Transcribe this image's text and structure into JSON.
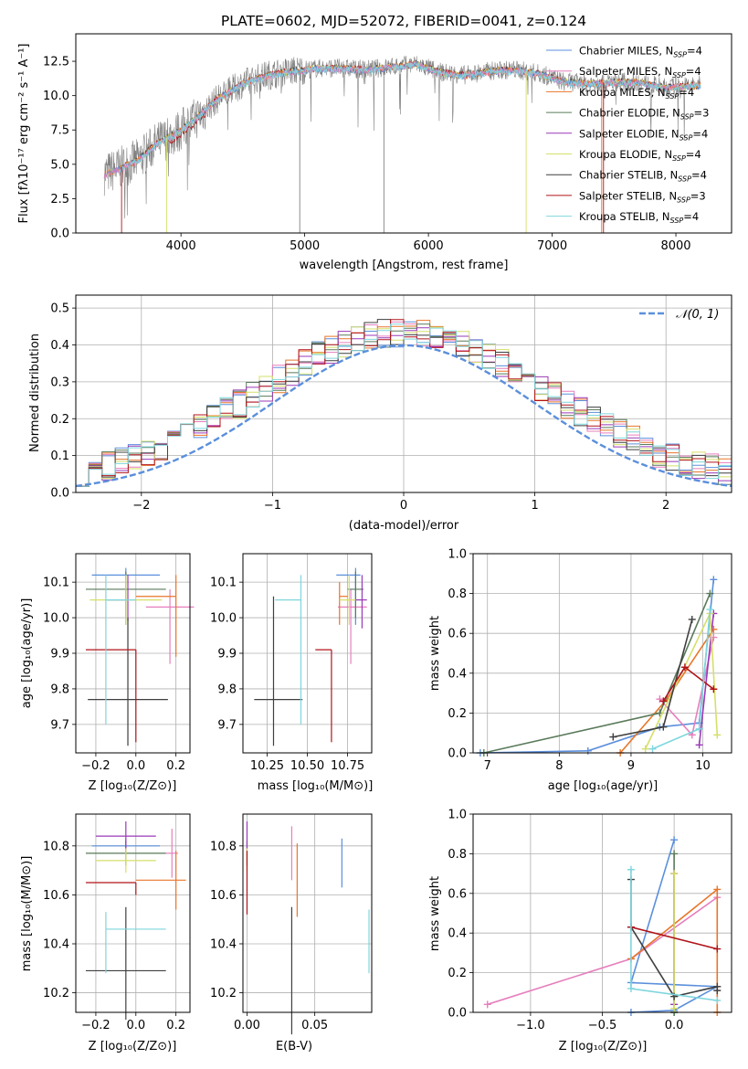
{
  "colors": {
    "chabrier_miles": "#5b8fdc",
    "salpeter_miles": "#e67fbd",
    "kroupa_miles": "#e8762a",
    "chabrier_elodie": "#5a7a5a",
    "salpeter_elodie": "#9a39b8",
    "kroupa_elodie": "#d6df6a",
    "chabrier_stelib": "#3f3f3f",
    "salpeter_stelib": "#b0141a",
    "kroupa_stelib": "#7fd6dd",
    "data": "#808080",
    "normal": "#5b8fdc"
  },
  "chart_data": [
    {
      "id": "spectrum",
      "type": "line",
      "title": "PLATE=0602, MJD=52072, FIBERID=0041, z=0.124",
      "xlabel": "wavelength [Angstrom, rest frame]",
      "ylabel": "Flux [fλ10⁻¹⁷ erg cm⁻² s⁻¹ A⁻¹]",
      "xlim": [
        3150,
        8450
      ],
      "ylim": [
        0,
        14.5
      ],
      "xticks": [
        "4000",
        "5000",
        "6000",
        "7000",
        "8000"
      ],
      "yticks": [
        "0.0",
        "2.5",
        "5.0",
        "7.5",
        "10.0",
        "12.5"
      ],
      "grid": false,
      "legend_position": "upper right",
      "continuum": {
        "x": [
          3380,
          3500,
          3650,
          3800,
          3950,
          4100,
          4300,
          4500,
          4700,
          4900,
          5100,
          5300,
          5500,
          5700,
          5900,
          6100,
          6300,
          6500,
          6700,
          6900,
          7100,
          7300,
          7500,
          7700,
          7900,
          8100,
          8200
        ],
        "y": [
          4.3,
          4.7,
          5.3,
          6.5,
          7.2,
          8.2,
          9.8,
          10.9,
          11.5,
          11.8,
          12.0,
          12.0,
          11.9,
          12.1,
          12.3,
          11.7,
          11.5,
          11.8,
          11.9,
          11.6,
          11.0,
          10.9,
          11.0,
          11.0,
          10.6,
          10.7,
          10.8
        ]
      },
      "legend": [
        {
          "key": "chabrier_miles",
          "label": "Chabrier MILES, N",
          "sub": "SSP",
          "tail": "=4"
        },
        {
          "key": "salpeter_miles",
          "label": "Salpeter MILES, N",
          "sub": "SSP",
          "tail": "=4"
        },
        {
          "key": "kroupa_miles",
          "label": "Kroupa MILES, N",
          "sub": "SSP",
          "tail": "=4"
        },
        {
          "key": "chabrier_elodie",
          "label": "Chabrier ELODIE, N",
          "sub": "SSP",
          "tail": "=3"
        },
        {
          "key": "salpeter_elodie",
          "label": "Salpeter ELODIE, N",
          "sub": "SSP",
          "tail": "=4"
        },
        {
          "key": "kroupa_elodie",
          "label": "Kroupa ELODIE, N",
          "sub": "SSP",
          "tail": "=4"
        },
        {
          "key": "chabrier_stelib",
          "label": "Chabrier STELIB, N",
          "sub": "SSP",
          "tail": "=4"
        },
        {
          "key": "salpeter_stelib",
          "label": "Salpeter STELIB, N",
          "sub": "SSP",
          "tail": "=3"
        },
        {
          "key": "kroupa_stelib",
          "label": "Kroupa STELIB, N",
          "sub": "SSP",
          "tail": "=4"
        }
      ]
    },
    {
      "id": "residuals",
      "type": "histogram",
      "xlabel": "(data-model)/error",
      "ylabel": "Normed distribution",
      "xlim": [
        -2.5,
        2.5
      ],
      "ylim": [
        0,
        0.535
      ],
      "xticks": [
        "−2",
        "−1",
        "0",
        "1",
        "2"
      ],
      "yticks": [
        "0.0",
        "0.1",
        "0.2",
        "0.3",
        "0.4",
        "0.5"
      ],
      "grid": true,
      "legend": [
        {
          "label": "𝒩(0, 1)"
        }
      ],
      "legend_position": "upper right",
      "bin_width": 0.1
    },
    {
      "id": "age-vs-z",
      "type": "errorbar",
      "xlabel": "Z [log₁₀(Z/Z⊙)]",
      "ylabel": "age  [log₁₀(age/yr)]",
      "xlim": [
        -0.3,
        0.27
      ],
      "ylim": [
        9.62,
        10.18
      ],
      "xticks": [
        "−0.2",
        "0.0",
        "0.2"
      ],
      "yticks": [
        "9.7",
        "9.8",
        "9.9",
        "10.0",
        "10.1"
      ],
      "grid": true,
      "points": [
        {
          "key": "chabrier_miles",
          "x": -0.05,
          "xerr": [
            0.17,
            0.17
          ],
          "y": 10.12,
          "yerr": [
            0.14,
            0.02
          ]
        },
        {
          "key": "salpeter_miles",
          "x": 0.17,
          "xerr": [
            0.12,
            0.12
          ],
          "y": 10.03,
          "yerr": [
            0.16,
            0.05
          ]
        },
        {
          "key": "kroupa_miles",
          "x": 0.2,
          "xerr": [
            0.2,
            0.0
          ],
          "y": 10.06,
          "yerr": [
            0.17,
            0.06
          ]
        },
        {
          "key": "chabrier_elodie",
          "x": -0.05,
          "xerr": [
            0.2,
            0.2
          ],
          "y": 10.08,
          "yerr": [
            0.08,
            0.05
          ]
        },
        {
          "key": "salpeter_elodie",
          "x": -0.04,
          "xerr": [
            0.1,
            0.0
          ],
          "y": 10.05,
          "yerr": [
            0.06,
            0.07
          ]
        },
        {
          "key": "kroupa_elodie",
          "x": -0.05,
          "xerr": [
            0.18,
            0.18
          ],
          "y": 10.05,
          "yerr": [
            0.07,
            0.07
          ]
        },
        {
          "key": "chabrier_stelib",
          "x": -0.04,
          "xerr": [
            0.2,
            0.2
          ],
          "y": 9.77,
          "yerr": [
            0.13,
            0.23
          ]
        },
        {
          "key": "salpeter_stelib",
          "x": 0.0,
          "xerr": [
            0.25,
            0.0
          ],
          "y": 9.91,
          "yerr": [
            0.26,
            0.0
          ]
        },
        {
          "key": "kroupa_stelib",
          "x": -0.15,
          "xerr": [
            0.0,
            0.15
          ],
          "y": 10.05,
          "yerr": [
            0.35,
            0.07
          ]
        }
      ]
    },
    {
      "id": "age-vs-mass",
      "type": "errorbar",
      "xlabel": "mass [log₁₀(M/M⊙)]",
      "ylabel": "",
      "xlim": [
        10.1,
        10.9
      ],
      "ylim": [
        9.62,
        10.18
      ],
      "xticks": [
        "10.25",
        "10.50",
        "10.75"
      ],
      "yticks": [
        "9.7",
        "9.8",
        "9.9",
        "10.0",
        "10.1"
      ],
      "grid": true,
      "points": [
        {
          "key": "chabrier_miles",
          "x": 10.8,
          "xerr": [
            0.12,
            0.03
          ],
          "y": 10.12,
          "yerr": [
            0.14,
            0.02
          ]
        },
        {
          "key": "salpeter_miles",
          "x": 10.77,
          "xerr": [
            0.08,
            0.1
          ],
          "y": 10.03,
          "yerr": [
            0.16,
            0.05
          ]
        },
        {
          "key": "kroupa_miles",
          "x": 10.7,
          "xerr": [
            0.0,
            0.05
          ],
          "y": 10.06,
          "yerr": [
            0.08,
            0.04
          ]
        },
        {
          "key": "chabrier_elodie",
          "x": 10.8,
          "xerr": [
            0.05,
            0.05
          ],
          "y": 10.08,
          "yerr": [
            0.08,
            0.05
          ]
        },
        {
          "key": "salpeter_elodie",
          "x": 10.84,
          "xerr": [
            0.05,
            0.03
          ],
          "y": 10.05,
          "yerr": [
            0.08,
            0.07
          ]
        },
        {
          "key": "kroupa_elodie",
          "x": 10.76,
          "xerr": [
            0.06,
            0.04
          ],
          "y": 10.05,
          "yerr": [
            0.07,
            0.07
          ]
        },
        {
          "key": "chabrier_stelib",
          "x": 10.29,
          "xerr": [
            0.12,
            0.18
          ],
          "y": 9.77,
          "yerr": [
            0.13,
            0.29
          ]
        },
        {
          "key": "salpeter_stelib",
          "x": 10.65,
          "xerr": [
            0.1,
            0.0
          ],
          "y": 9.91,
          "yerr": [
            0.26,
            0.0
          ]
        },
        {
          "key": "kroupa_stelib",
          "x": 10.46,
          "xerr": [
            0.16,
            0.0
          ],
          "y": 10.05,
          "yerr": [
            0.35,
            0.07
          ]
        }
      ]
    },
    {
      "id": "weight-vs-age",
      "type": "line",
      "xlabel": "age  [log₁₀(age/yr)]",
      "ylabel": "mass weight",
      "xlim": [
        6.8,
        10.4
      ],
      "ylim": [
        0,
        1
      ],
      "xticks": [
        "7",
        "8",
        "9",
        "10"
      ],
      "yticks": [
        "0.0",
        "0.2",
        "0.4",
        "0.6",
        "0.8",
        "1.0"
      ],
      "grid": true,
      "series": [
        {
          "key": "chabrier_miles",
          "x": [
            6.9,
            8.4,
            9.4,
            9.95,
            10.15
          ],
          "y": [
            0.0,
            0.01,
            0.13,
            0.15,
            0.87
          ]
        },
        {
          "key": "salpeter_miles",
          "x": [
            9.4,
            9.85,
            10.15
          ],
          "y": [
            0.27,
            0.09,
            0.58
          ]
        },
        {
          "key": "kroupa_miles",
          "x": [
            8.85,
            9.5,
            10.15
          ],
          "y": [
            0.0,
            0.27,
            0.62
          ]
        },
        {
          "key": "chabrier_elodie",
          "x": [
            6.95,
            9.4,
            10.1
          ],
          "y": [
            0.0,
            0.2,
            0.8
          ]
        },
        {
          "key": "salpeter_elodie",
          "x": [
            9.95,
            10.15
          ],
          "y": [
            0.04,
            0.7
          ]
        },
        {
          "key": "kroupa_elodie",
          "x": [
            9.2,
            10.1,
            10.2
          ],
          "y": [
            0.02,
            0.7,
            0.09
          ]
        },
        {
          "key": "chabrier_stelib",
          "x": [
            8.75,
            9.45,
            9.85
          ],
          "y": [
            0.08,
            0.13,
            0.67
          ]
        },
        {
          "key": "salpeter_stelib",
          "x": [
            9.45,
            9.75,
            10.15
          ],
          "y": [
            0.26,
            0.43,
            0.32
          ]
        },
        {
          "key": "kroupa_stelib",
          "x": [
            9.3,
            9.95,
            10.1
          ],
          "y": [
            0.02,
            0.12,
            0.72
          ]
        }
      ]
    },
    {
      "id": "mass-vs-z",
      "type": "errorbar",
      "xlabel": "Z [log₁₀(Z/Z⊙)]",
      "ylabel": "mass [log₁₀(M/M⊙)]",
      "xlim": [
        -0.3,
        0.27
      ],
      "ylim": [
        10.12,
        10.93
      ],
      "xticks": [
        "−0.2",
        "0.0",
        "0.2"
      ],
      "yticks": [
        "10.2",
        "10.4",
        "10.6",
        "10.8"
      ],
      "grid": true,
      "points": [
        {
          "key": "chabrier_miles",
          "x": -0.05,
          "xerr": [
            0.17,
            0.17
          ],
          "y": 10.8,
          "yerr": [
            0.03,
            0.03
          ]
        },
        {
          "key": "salpeter_miles",
          "x": 0.18,
          "xerr": [
            0.03,
            0.03
          ],
          "y": 10.77,
          "yerr": [
            0.1,
            0.1
          ]
        },
        {
          "key": "kroupa_miles",
          "x": 0.2,
          "xerr": [
            0.2,
            0.05
          ],
          "y": 10.66,
          "yerr": [
            0.12,
            0.12
          ]
        },
        {
          "key": "chabrier_elodie",
          "x": -0.05,
          "xerr": [
            0.2,
            0.2
          ],
          "y": 10.77,
          "yerr": [
            0.05,
            0.05
          ]
        },
        {
          "key": "salpeter_elodie",
          "x": -0.05,
          "xerr": [
            0.15,
            0.15
          ],
          "y": 10.84,
          "yerr": [
            0.06,
            0.06
          ]
        },
        {
          "key": "kroupa_elodie",
          "x": -0.05,
          "xerr": [
            0.15,
            0.15
          ],
          "y": 10.74,
          "yerr": [
            0.05,
            0.05
          ]
        },
        {
          "key": "chabrier_stelib",
          "x": -0.05,
          "xerr": [
            0.2,
            0.2
          ],
          "y": 10.29,
          "yerr": [
            0.2,
            0.26
          ]
        },
        {
          "key": "salpeter_stelib",
          "x": 0.0,
          "xerr": [
            0.25,
            0.0
          ],
          "y": 10.65,
          "yerr": [
            0.05,
            0.0
          ]
        },
        {
          "key": "kroupa_stelib",
          "x": -0.15,
          "xerr": [
            0.0,
            0.3
          ],
          "y": 10.46,
          "yerr": [
            0.18,
            0.07
          ]
        }
      ]
    },
    {
      "id": "mass-vs-ebv",
      "type": "errorbar",
      "xlabel": "E(B-V)",
      "ylabel": "",
      "xlim": [
        -0.003,
        0.092
      ],
      "ylim": [
        10.12,
        10.93
      ],
      "xticks": [
        "0.00",
        "0.05"
      ],
      "yticks": [
        "10.2",
        "10.4",
        "10.6",
        "10.8"
      ],
      "grid": true,
      "points": [
        {
          "key": "chabrier_miles",
          "x": 0.07,
          "xerr": [
            0,
            0
          ],
          "y": 10.73,
          "yerr": [
            0.1,
            0.1
          ]
        },
        {
          "key": "salpeter_miles",
          "x": 0.033,
          "xerr": [
            0,
            0
          ],
          "y": 10.77,
          "yerr": [
            0.11,
            0.11
          ]
        },
        {
          "key": "kroupa_miles",
          "x": 0.037,
          "xerr": [
            0,
            0
          ],
          "y": 10.66,
          "yerr": [
            0.15,
            0.15
          ]
        },
        {
          "key": "chabrier_elodie",
          "x": 0.0,
          "xerr": [
            0,
            0
          ],
          "y": 10.77,
          "yerr": [
            0.05,
            0.05
          ]
        },
        {
          "key": "salpeter_elodie",
          "x": 0.0,
          "xerr": [
            0,
            0
          ],
          "y": 10.84,
          "yerr": [
            0.06,
            0.06
          ]
        },
        {
          "key": "kroupa_elodie",
          "x": 0.0,
          "xerr": [
            0,
            0
          ],
          "y": 10.74,
          "yerr": [
            0.05,
            0.05
          ]
        },
        {
          "key": "chabrier_stelib",
          "x": 0.033,
          "xerr": [
            0,
            0
          ],
          "y": 10.29,
          "yerr": [
            0.26,
            0.26
          ]
        },
        {
          "key": "salpeter_stelib",
          "x": 0.0,
          "xerr": [
            0,
            0
          ],
          "y": 10.65,
          "yerr": [
            0.13,
            0.13
          ]
        },
        {
          "key": "kroupa_stelib",
          "x": 0.09,
          "xerr": [
            0,
            0
          ],
          "y": 10.41,
          "yerr": [
            0.13,
            0.13
          ]
        }
      ]
    },
    {
      "id": "weight-vs-z",
      "type": "line",
      "xlabel": "Z [log₁₀(Z/Z⊙)]",
      "ylabel": "mass weight",
      "xlim": [
        -1.4,
        0.4
      ],
      "ylim": [
        0,
        1
      ],
      "xticks": [
        "−1.0",
        "−0.5",
        "0.0"
      ],
      "yticks": [
        "0.0",
        "0.2",
        "0.4",
        "0.6",
        "0.8",
        "1.0"
      ],
      "grid": true,
      "series": [
        {
          "key": "chabrier_miles",
          "x": [
            -0.3,
            0.0,
            0.3,
            -0.3,
            0.0
          ],
          "y": [
            0.0,
            0.01,
            0.13,
            0.15,
            0.87
          ]
        },
        {
          "key": "salpeter_miles",
          "x": [
            -1.3,
            -0.3,
            0.3
          ],
          "y": [
            0.04,
            0.27,
            0.58
          ]
        },
        {
          "key": "kroupa_miles",
          "x": [
            -0.3,
            0.3,
            0.3
          ],
          "y": [
            0.27,
            0.62,
            0.0
          ]
        },
        {
          "key": "chabrier_elodie",
          "x": [
            0.0,
            0.0,
            0.0
          ],
          "y": [
            0.0,
            0.8,
            0.0
          ]
        },
        {
          "key": "salpeter_elodie",
          "x": [
            0.0,
            0.0
          ],
          "y": [
            0.04,
            0.7
          ]
        },
        {
          "key": "kroupa_elodie",
          "x": [
            0.0,
            0.0,
            0.0
          ],
          "y": [
            0.02,
            0.7,
            0.09
          ]
        },
        {
          "key": "chabrier_stelib",
          "x": [
            -0.3,
            -0.3,
            0.0,
            0.3,
            0.3
          ],
          "y": [
            0.67,
            0.43,
            0.08,
            0.13,
            0.11
          ]
        },
        {
          "key": "salpeter_stelib",
          "x": [
            -0.3,
            0.3
          ],
          "y": [
            0.43,
            0.32
          ]
        },
        {
          "key": "kroupa_stelib",
          "x": [
            -0.3,
            -0.3,
            0.3
          ],
          "y": [
            0.72,
            0.12,
            0.06
          ]
        }
      ]
    }
  ]
}
